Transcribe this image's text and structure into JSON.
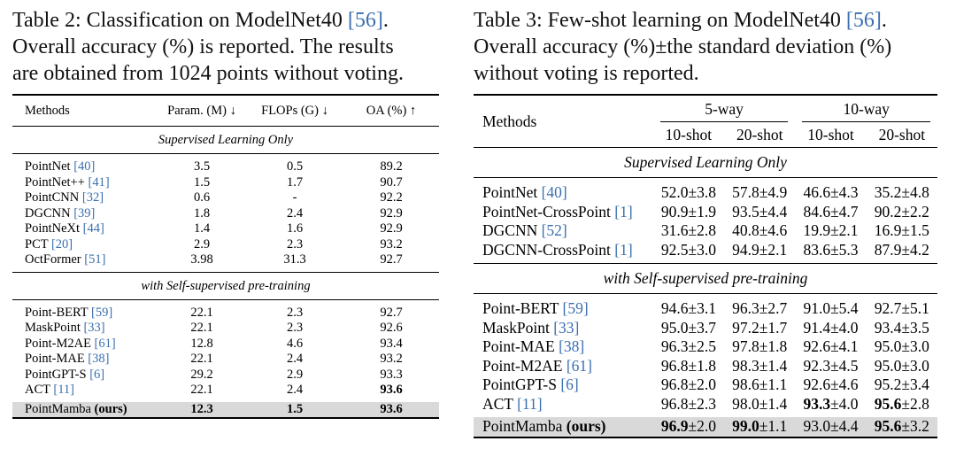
{
  "table2": {
    "caption_lines": [
      "Table 2: Classification on ModelNet40 [56].",
      "Overall accuracy (%) is reported. The results",
      "are obtained from 1024 points without voting."
    ],
    "headers": [
      "Methods",
      "Param. (M) ↓",
      "FLOPs (G) ↓",
      "OA (%) ↑"
    ],
    "section1": "Supervised Learning Only",
    "section2": "with Self-supervised pre-training",
    "rows1": [
      {
        "name": "PointNet",
        "ref": "[40]",
        "param": "3.5",
        "flops": "0.5",
        "oa": "89.2"
      },
      {
        "name": "PointNet++",
        "ref": "[41]",
        "param": "1.5",
        "flops": "1.7",
        "oa": "90.7"
      },
      {
        "name": "PointCNN",
        "ref": "[32]",
        "param": "0.6",
        "flops": "-",
        "oa": "92.2"
      },
      {
        "name": "DGCNN",
        "ref": "[39]",
        "param": "1.8",
        "flops": "2.4",
        "oa": "92.9"
      },
      {
        "name": "PointNeXt",
        "ref": "[44]",
        "param": "1.4",
        "flops": "1.6",
        "oa": "92.9"
      },
      {
        "name": "PCT",
        "ref": "[20]",
        "param": "2.9",
        "flops": "2.3",
        "oa": "93.2"
      },
      {
        "name": "OctFormer",
        "ref": "[51]",
        "param": "3.98",
        "flops": "31.3",
        "oa": "92.7"
      }
    ],
    "rows2": [
      {
        "name": "Point-BERT",
        "ref": "[59]",
        "param": "22.1",
        "flops": "2.3",
        "oa": "92.7"
      },
      {
        "name": "MaskPoint",
        "ref": "[33]",
        "param": "22.1",
        "flops": "2.3",
        "oa": "92.6"
      },
      {
        "name": "Point-M2AE",
        "ref": "[61]",
        "param": "12.8",
        "flops": "4.6",
        "oa": "93.4"
      },
      {
        "name": "Point-MAE",
        "ref": "[38]",
        "param": "22.1",
        "flops": "2.4",
        "oa": "93.2"
      },
      {
        "name": "PointGPT-S",
        "ref": "[6]",
        "param": "29.2",
        "flops": "2.9",
        "oa": "93.3"
      },
      {
        "name": "ACT",
        "ref": "[11]",
        "param": "22.1",
        "flops": "2.4",
        "oa": "93.6"
      }
    ],
    "ours": {
      "name": "PointMamba",
      "tag": "(ours)",
      "param": "12.3",
      "flops": "1.5",
      "oa": "93.6"
    }
  },
  "table3": {
    "caption_lines": [
      "Table 3: Few-shot learning on ModelNet40 [56].",
      "Overall accuracy (%)±the standard deviation (%)",
      "without voting is reported."
    ],
    "methods_header": "Methods",
    "group_headers": [
      "5-way",
      "10-way"
    ],
    "sub_headers": [
      "10-shot",
      "20-shot",
      "10-shot",
      "20-shot"
    ],
    "section1": "Supervised Learning Only",
    "section2": "with Self-supervised pre-training",
    "rows1": [
      {
        "name": "PointNet",
        "ref": "[40]",
        "v": [
          "52.0±3.8",
          "57.8±4.9",
          "46.6±4.3",
          "35.2±4.8"
        ]
      },
      {
        "name": "PointNet-CrossPoint",
        "ref": "[1]",
        "v": [
          "90.9±1.9",
          "93.5±4.4",
          "84.6±4.7",
          "90.2±2.2"
        ]
      },
      {
        "name": "DGCNN",
        "ref": "[52]",
        "v": [
          "31.6±2.8",
          "40.8±4.6",
          "19.9±2.1",
          "16.9±1.5"
        ]
      },
      {
        "name": "DGCNN-CrossPoint",
        "ref": "[1]",
        "v": [
          "92.5±3.0",
          "94.9±2.1",
          "83.6±5.3",
          "87.9±4.2"
        ]
      }
    ],
    "rows2": [
      {
        "name": "Point-BERT",
        "ref": "[59]",
        "v": [
          "94.6±3.1",
          "96.3±2.7",
          "91.0±5.4",
          "92.7±5.1"
        ]
      },
      {
        "name": "MaskPoint",
        "ref": "[33]",
        "v": [
          "95.0±3.7",
          "97.2±1.7",
          "91.4±4.0",
          "93.4±3.5"
        ]
      },
      {
        "name": "Point-MAE",
        "ref": "[38]",
        "v": [
          "96.3±2.5",
          "97.8±1.8",
          "92.6±4.1",
          "95.0±3.0"
        ]
      },
      {
        "name": "Point-M2AE",
        "ref": "[61]",
        "v": [
          "96.8±1.8",
          "98.3±1.4",
          "92.3±4.5",
          "95.0±3.0"
        ]
      },
      {
        "name": "PointGPT-S",
        "ref": "[6]",
        "v": [
          "96.8±2.0",
          "98.6±1.1",
          "92.6±4.6",
          "95.2±3.4"
        ]
      },
      {
        "name": "ACT",
        "ref": "[11]",
        "v": [
          "96.8±2.3",
          "98.0±1.4",
          "93.3±4.0",
          "95.6±2.8"
        ]
      }
    ],
    "ours": {
      "name": "PointMamba",
      "tag": "(ours)",
      "v": [
        "96.9±2.0",
        "99.0±1.1",
        "93.0±4.4",
        "95.6±3.2"
      ]
    },
    "bold_cells": [
      "rows2.5.2",
      "rows2.5.3",
      "ours.0",
      "ours.1",
      "ours.3"
    ]
  },
  "colors": {
    "citation": "#3a6fb0",
    "highlight_row": "#d9d9d9"
  }
}
